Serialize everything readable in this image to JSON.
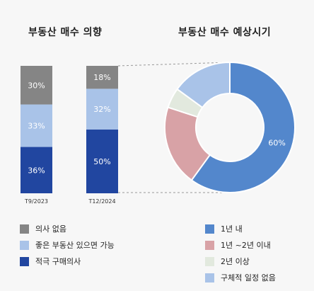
{
  "chart_data": [
    {
      "type": "bar",
      "stacked": true,
      "title": "부동산 매수 의향",
      "categories": [
        "T9/2023",
        "T12/2024"
      ],
      "series": [
        {
          "name": "적극 구매의사",
          "color": "#2146a0",
          "values": [
            36,
            50
          ],
          "labels": [
            "36%",
            "50%"
          ]
        },
        {
          "name": "좋은 부동산 있으면 가능",
          "color": "#a9c3e8",
          "values": [
            33,
            32
          ],
          "labels": [
            "33%",
            "32%"
          ]
        },
        {
          "name": "의사 없음",
          "color": "#858585",
          "values": [
            30,
            18
          ],
          "labels": [
            "30%",
            "18%"
          ]
        }
      ],
      "legend_position": "bottom-left"
    },
    {
      "type": "pie",
      "donut": true,
      "title": "부동산 매수 예상시기",
      "slices": [
        {
          "name": "1년 내",
          "value": 60,
          "label": "60%",
          "color": "#5387cc"
        },
        {
          "name": "1년 ~2년 이내",
          "value": 20,
          "label": "",
          "color": "#d8a2a6"
        },
        {
          "name": "2년 이상",
          "value": 5,
          "label": "",
          "color": "#e2e9de"
        },
        {
          "name": "구체적 일정 없음",
          "value": 15,
          "label": "",
          "color": "#a9c3e8"
        }
      ],
      "legend_position": "bottom-right"
    }
  ],
  "legends": {
    "left": [
      {
        "label": "의사  없음",
        "color": "#858585"
      },
      {
        "label": "좋은  부동산 있으면 가능",
        "color": "#a9c3e8"
      },
      {
        "label": "적극 구매의사",
        "color": "#2146a0"
      }
    ],
    "right": [
      {
        "label": "1년 내",
        "color": "#5387cc"
      },
      {
        "label": "1년 ~2년 이내",
        "color": "#d8a2a6"
      },
      {
        "label": "2년 이상",
        "color": "#e2e9de"
      },
      {
        "label": "구체적 일정 없음",
        "color": "#a9c3e8"
      }
    ]
  }
}
